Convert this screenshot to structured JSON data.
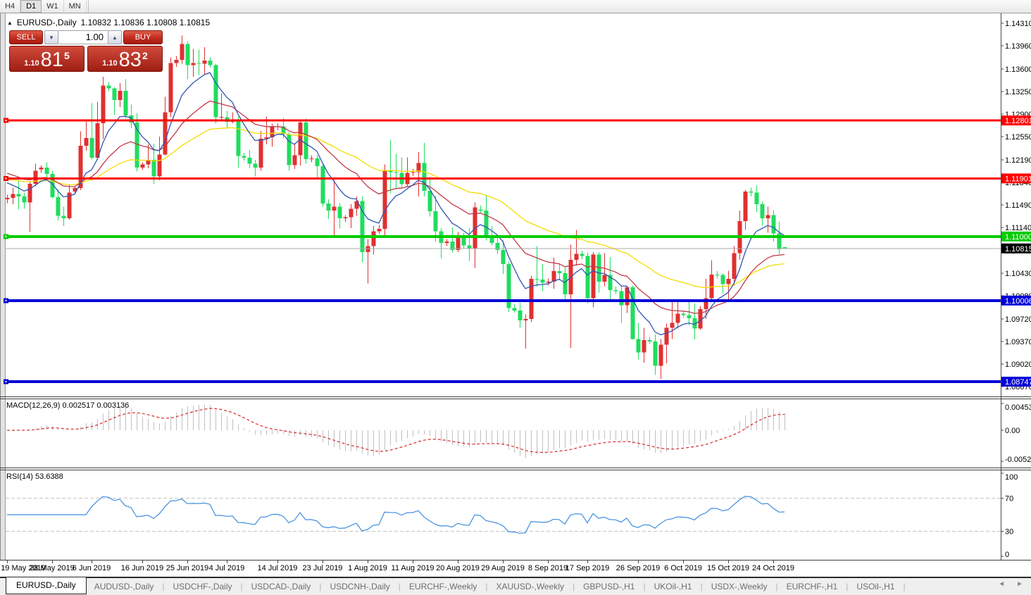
{
  "toolbar": {
    "timeframes": [
      "H4",
      "D1",
      "W1",
      "MN"
    ],
    "active": "D1"
  },
  "chart": {
    "collapse_arrow": "▲",
    "title": "EURUSD-,Daily",
    "ohlc": "1.10832 1.10836 1.10808 1.10815",
    "trade": {
      "sell_label": "SELL",
      "buy_label": "BUY",
      "volume": "1.00",
      "volume_down_icon": "▼",
      "volume_up_icon": "▲",
      "sell_price": {
        "prefix": "1.10",
        "main": "81",
        "sup": "5"
      },
      "buy_price": {
        "prefix": "1.10",
        "main": "83",
        "sup": "2"
      }
    },
    "price_axis": {
      "ticks": [
        "1.14310",
        "1.13960",
        "1.13600",
        "1.13250",
        "1.12900",
        "1.12550",
        "1.12190",
        "1.11840",
        "1.11490",
        "1.11140",
        "1.10780",
        "1.10430",
        "1.10080",
        "1.09720",
        "1.09370",
        "1.09020",
        "1.08670"
      ]
    },
    "levels": [
      {
        "price": 1.12801,
        "label": "1.12801",
        "color": "#FE0000",
        "thickness": 3
      },
      {
        "price": 1.11901,
        "label": "1.11901",
        "color": "#FE0000",
        "thickness": 3
      },
      {
        "price": 1.11,
        "label": "1.11000",
        "color": "#00CC00",
        "thickness": 4
      },
      {
        "price": 1.10006,
        "label": "1.10006",
        "color": "#0000D6",
        "thickness": 4
      },
      {
        "price": 1.08747,
        "label": "1.08747",
        "color": "#0000D6",
        "thickness": 4
      }
    ],
    "current_price": {
      "price": 1.10815,
      "label": "1.10815",
      "line_color": "#ababab",
      "badge_color": "#000000"
    },
    "candle_colors": {
      "bull": "#E03030",
      "bear": "#1FDD5E"
    },
    "moving_averages": [
      {
        "name": "slow",
        "period": 45,
        "color": "#F5DC00",
        "seed": 1.119
      },
      {
        "name": "mid",
        "period": 21,
        "color": "#C23A47",
        "seed": 1.1202
      },
      {
        "name": "fast",
        "period": 8,
        "color": "#2F55B4",
        "seed": 1.119
      }
    ],
    "candles": [
      [
        1.1158,
        1.1165,
        1.1152,
        1.116
      ],
      [
        1.116,
        1.1176,
        1.115,
        1.1166
      ],
      [
        1.1166,
        1.1188,
        1.1142,
        1.1162
      ],
      [
        1.1162,
        1.1168,
        1.1143,
        1.1153
      ],
      [
        1.1153,
        1.1186,
        1.1107,
        1.1182
      ],
      [
        1.1182,
        1.1213,
        1.1178,
        1.1202
      ],
      [
        1.1204,
        1.121,
        1.1199,
        1.1207
      ],
      [
        1.1207,
        1.1215,
        1.1186,
        1.1197
      ],
      [
        1.1197,
        1.1202,
        1.1159,
        1.1161
      ],
      [
        1.1161,
        1.1173,
        1.1125,
        1.1132
      ],
      [
        1.1132,
        1.1146,
        1.1116,
        1.1128
      ],
      [
        1.1128,
        1.118,
        1.1126,
        1.1168
      ],
      [
        1.117,
        1.1178,
        1.1167,
        1.1175
      ],
      [
        1.1175,
        1.1263,
        1.1172,
        1.1241
      ],
      [
        1.1241,
        1.1278,
        1.1233,
        1.1253
      ],
      [
        1.1253,
        1.1307,
        1.122,
        1.1222
      ],
      [
        1.1222,
        1.1309,
        1.1219,
        1.1276
      ],
      [
        1.1276,
        1.1348,
        1.1251,
        1.1334
      ],
      [
        1.1334,
        1.134,
        1.1325,
        1.133
      ],
      [
        1.133,
        1.1332,
        1.1289,
        1.1312
      ],
      [
        1.1312,
        1.1338,
        1.1301,
        1.1326
      ],
      [
        1.1326,
        1.1344,
        1.1283,
        1.1288
      ],
      [
        1.1288,
        1.1305,
        1.1268,
        1.1277
      ],
      [
        1.1277,
        1.1291,
        1.1201,
        1.1207
      ],
      [
        1.1207,
        1.1215,
        1.1203,
        1.1212
      ],
      [
        1.1212,
        1.1243,
        1.1206,
        1.1219
      ],
      [
        1.1219,
        1.1244,
        1.1181,
        1.1193
      ],
      [
        1.1193,
        1.1255,
        1.1187,
        1.1227
      ],
      [
        1.1227,
        1.1317,
        1.1226,
        1.1293
      ],
      [
        1.1293,
        1.1378,
        1.1285,
        1.1369
      ],
      [
        1.1369,
        1.138,
        1.1363,
        1.1374
      ],
      [
        1.1374,
        1.1412,
        1.1368,
        1.1399
      ],
      [
        1.1399,
        1.1403,
        1.1344,
        1.1366
      ],
      [
        1.1366,
        1.1391,
        1.1348,
        1.1369
      ],
      [
        1.1369,
        1.139,
        1.135,
        1.1368
      ],
      [
        1.1368,
        1.1394,
        1.1351,
        1.1373
      ],
      [
        1.1373,
        1.1378,
        1.1362,
        1.1366
      ],
      [
        1.1366,
        1.1368,
        1.1275,
        1.1285
      ],
      [
        1.1285,
        1.1322,
        1.1281,
        1.1285
      ],
      [
        1.1285,
        1.1295,
        1.1268,
        1.1278
      ],
      [
        1.1278,
        1.1293,
        1.1276,
        1.1281
      ],
      [
        1.1281,
        1.1286,
        1.1207,
        1.1225
      ],
      [
        1.1225,
        1.123,
        1.1218,
        1.1222
      ],
      [
        1.1222,
        1.1234,
        1.1206,
        1.1213
      ],
      [
        1.1213,
        1.1219,
        1.1193,
        1.1207
      ],
      [
        1.1207,
        1.1264,
        1.1202,
        1.1252
      ],
      [
        1.1252,
        1.1286,
        1.1243,
        1.1254
      ],
      [
        1.1254,
        1.1275,
        1.1239,
        1.127
      ],
      [
        1.127,
        1.1276,
        1.1265,
        1.1271
      ],
      [
        1.1271,
        1.1284,
        1.1253,
        1.1259
      ],
      [
        1.1259,
        1.1262,
        1.1202,
        1.1211
      ],
      [
        1.1211,
        1.1243,
        1.1205,
        1.1226
      ],
      [
        1.1226,
        1.1282,
        1.121,
        1.1277
      ],
      [
        1.1277,
        1.1283,
        1.1213,
        1.122
      ],
      [
        1.122,
        1.1226,
        1.1215,
        1.1221
      ],
      [
        1.1221,
        1.1226,
        1.1191,
        1.1209
      ],
      [
        1.1209,
        1.1212,
        1.1146,
        1.1151
      ],
      [
        1.1151,
        1.1158,
        1.1127,
        1.114
      ],
      [
        1.114,
        1.1188,
        1.1101,
        1.1146
      ],
      [
        1.1146,
        1.1152,
        1.1112,
        1.1128
      ],
      [
        1.1128,
        1.1133,
        1.1123,
        1.113
      ],
      [
        1.113,
        1.115,
        1.1113,
        1.1143
      ],
      [
        1.1143,
        1.1162,
        1.1132,
        1.1155
      ],
      [
        1.1155,
        1.1162,
        1.106,
        1.1076
      ],
      [
        1.1076,
        1.1096,
        1.1027,
        1.1085
      ],
      [
        1.1085,
        1.1116,
        1.1072,
        1.1108
      ],
      [
        1.1108,
        1.1118,
        1.1104,
        1.1112
      ],
      [
        1.1112,
        1.1212,
        1.1101,
        1.1203
      ],
      [
        1.1203,
        1.125,
        1.1167,
        1.12
      ],
      [
        1.12,
        1.1228,
        1.1174,
        1.1199
      ],
      [
        1.1199,
        1.1223,
        1.1175,
        1.1181
      ],
      [
        1.1181,
        1.1223,
        1.1178,
        1.1199
      ],
      [
        1.1199,
        1.1205,
        1.1194,
        1.12
      ],
      [
        1.12,
        1.1231,
        1.1162,
        1.1214
      ],
      [
        1.1214,
        1.1245,
        1.1162,
        1.1171
      ],
      [
        1.1171,
        1.1192,
        1.1131,
        1.1139
      ],
      [
        1.1139,
        1.1163,
        1.1092,
        1.1108
      ],
      [
        1.1108,
        1.1113,
        1.1066,
        1.109
      ],
      [
        1.109,
        1.1096,
        1.1085,
        1.1092
      ],
      [
        1.1092,
        1.1114,
        1.1075,
        1.1079
      ],
      [
        1.1079,
        1.1107,
        1.1076,
        1.1099
      ],
      [
        1.1099,
        1.1106,
        1.1081,
        1.1086
      ],
      [
        1.1086,
        1.1113,
        1.1062,
        1.1081
      ],
      [
        1.1081,
        1.1153,
        1.1051,
        1.1145
      ],
      [
        1.1142,
        1.1148,
        1.1136,
        1.114
      ],
      [
        1.114,
        1.1164,
        1.1094,
        1.1101
      ],
      [
        1.1101,
        1.1116,
        1.1086,
        1.109
      ],
      [
        1.109,
        1.1098,
        1.1073,
        1.1079
      ],
      [
        1.1079,
        1.1094,
        1.1042,
        1.1057
      ],
      [
        1.1057,
        1.1061,
        1.0983,
        1.0989
      ],
      [
        1.0989,
        1.0995,
        1.0982,
        1.0985
      ],
      [
        1.0985,
        1.0997,
        1.0958,
        1.097
      ],
      [
        1.097,
        1.0979,
        1.0926,
        1.0972
      ],
      [
        1.0972,
        1.1039,
        1.0967,
        1.1034
      ],
      [
        1.1034,
        1.1085,
        1.1022,
        1.1033
      ],
      [
        1.1033,
        1.1057,
        1.1015,
        1.1028
      ],
      [
        1.1028,
        1.1035,
        1.1024,
        1.103
      ],
      [
        1.103,
        1.1067,
        1.1019,
        1.1046
      ],
      [
        1.1046,
        1.1059,
        1.1032,
        1.1043
      ],
      [
        1.1043,
        1.1053,
        1.0999,
        1.101
      ],
      [
        1.101,
        1.1087,
        1.0927,
        1.1064
      ],
      [
        1.1064,
        1.111,
        1.1055,
        1.1073
      ],
      [
        1.1073,
        1.1078,
        1.1065,
        1.107
      ],
      [
        1.107,
        1.1075,
        1.0996,
        1.1004
      ],
      [
        1.1004,
        1.1076,
        1.099,
        1.1072
      ],
      [
        1.1072,
        1.1076,
        1.1013,
        1.103
      ],
      [
        1.103,
        1.1074,
        1.1023,
        1.104
      ],
      [
        1.104,
        1.1068,
        1.1002,
        1.1017
      ],
      [
        1.1017,
        1.1022,
        1.1011,
        1.1015
      ],
      [
        1.1015,
        1.1023,
        1.0966,
        1.0993
      ],
      [
        1.0993,
        1.1024,
        1.0981,
        1.1021
      ],
      [
        1.1021,
        1.1024,
        1.094,
        1.0941
      ],
      [
        1.0941,
        1.0966,
        1.0909,
        1.092
      ],
      [
        1.092,
        1.0958,
        1.0904,
        1.0939
      ],
      [
        1.0939,
        1.0944,
        1.0933,
        1.0937
      ],
      [
        1.0937,
        1.0948,
        1.0885,
        1.0899
      ],
      [
        1.0899,
        1.0941,
        1.0879,
        1.0932
      ],
      [
        1.0932,
        1.0965,
        1.0903,
        1.0958
      ],
      [
        1.0958,
        1.0999,
        1.0941,
        1.0966
      ],
      [
        1.0966,
        1.0999,
        1.0957,
        1.098
      ],
      [
        1.098,
        1.0985,
        1.0974,
        1.0978
      ],
      [
        1.0978,
        1.1,
        1.0962,
        1.0973
      ],
      [
        1.0973,
        1.0996,
        1.094,
        1.0957
      ],
      [
        1.0957,
        1.0992,
        1.0955,
        1.0987
      ],
      [
        1.0987,
        1.1034,
        1.0972,
        1.1004
      ],
      [
        1.1004,
        1.1063,
        1.1002,
        1.1041
      ],
      [
        1.1041,
        1.1046,
        1.1035,
        1.104
      ],
      [
        1.104,
        1.1043,
        1.1012,
        1.1026
      ],
      [
        1.1026,
        1.1047,
        1.1001,
        1.1034
      ],
      [
        1.1034,
        1.1085,
        1.1024,
        1.1074
      ],
      [
        1.1074,
        1.114,
        1.1064,
        1.1124
      ],
      [
        1.1124,
        1.1172,
        1.111,
        1.117
      ],
      [
        1.117,
        1.1176,
        1.1162,
        1.1168
      ],
      [
        1.1168,
        1.1179,
        1.1138,
        1.115
      ],
      [
        1.115,
        1.1154,
        1.1117,
        1.1128
      ],
      [
        1.1128,
        1.1146,
        1.1106,
        1.1133
      ],
      [
        1.1133,
        1.1141,
        1.1092,
        1.1105
      ],
      [
        1.1105,
        1.1123,
        1.1073,
        1.108
      ],
      [
        1.10832,
        1.10836,
        1.10808,
        1.10815
      ]
    ],
    "time_axis": [
      [
        "19 May 2019",
        0
      ],
      [
        "28 May 2019",
        8
      ],
      [
        "6 Jun 2019",
        15
      ],
      [
        "16 Jun 2019",
        24
      ],
      [
        "25 Jun 2019",
        32
      ],
      [
        "4 Jul 2019",
        39
      ],
      [
        "14 Jul 2019",
        48
      ],
      [
        "23 Jul 2019",
        56
      ],
      [
        "1 Aug 2019",
        64
      ],
      [
        "11 Aug 2019",
        72
      ],
      [
        "20 Aug 2019",
        80
      ],
      [
        "29 Aug 2019",
        88
      ],
      [
        "8 Sep 2019",
        96
      ],
      [
        "17 Sep 2019",
        103
      ],
      [
        "26 Sep 2019",
        112
      ],
      [
        "6 Oct 2019",
        120
      ],
      [
        "15 Oct 2019",
        128
      ],
      [
        "24 Oct 2019",
        136
      ]
    ],
    "indicators": {
      "macd": {
        "name": "MACD(12,26,9)",
        "values": "0.002517 0.003136",
        "fast": 12,
        "slow": 26,
        "signal": 9,
        "axis": [
          {
            "v": 0.004536,
            "label": "0.004536"
          },
          {
            "v": 0,
            "label": "0.00"
          },
          {
            "v": -0.005205,
            "label": "-0.005205"
          }
        ],
        "histogram_color": "#c0c0c0",
        "signal_color": "#d62a2a"
      },
      "rsi": {
        "name": "RSI(14)",
        "value": "53.6388",
        "period": 14,
        "axis": [
          {
            "v": 100,
            "label": "100"
          },
          {
            "v": 70,
            "label": "70"
          },
          {
            "v": 30,
            "label": "30"
          },
          {
            "v": 0,
            "label": "0"
          }
        ],
        "line_color": "#3E8EDE"
      }
    }
  },
  "tabs": {
    "items": [
      "EURUSD-,Daily",
      "AUDUSD-,Daily",
      "USDCHF-,Daily",
      "USDCAD-,Daily",
      "USDCNH-,Daily",
      "EURCHF-,Weekly",
      "XAUUSD-,Weekly",
      "GBPUSD-,H1",
      "UKOil-,H1",
      "USDX-,Weekly",
      "EURCHF-,H1",
      "USOil-,H1"
    ],
    "active": "EURUSD-,Daily",
    "scroll_icons": {
      "left": "◄",
      "right": "►"
    }
  }
}
